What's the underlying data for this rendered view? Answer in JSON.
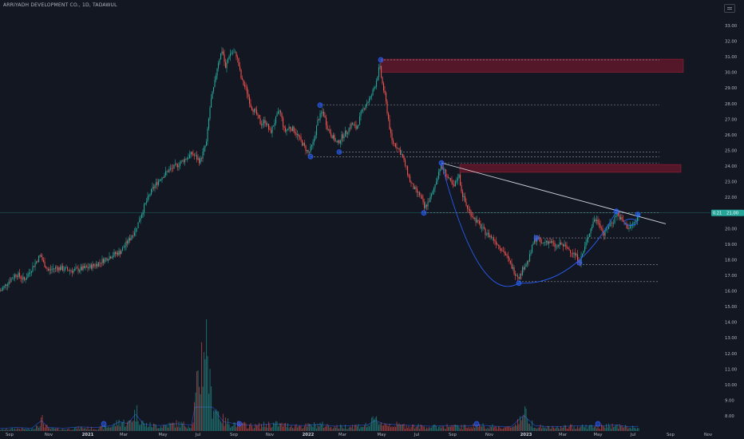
{
  "title": "ARRIYADH DEVELOPMENT CO., 1D, TADAWUL",
  "chart_data": {
    "type": "candlestick",
    "y_ticks": [
      "33.00",
      "32.00",
      "31.00",
      "30.00",
      "29.00",
      "28.00",
      "27.00",
      "26.00",
      "25.00",
      "24.00",
      "23.00",
      "22.00",
      "21.00",
      "20.00",
      "19.00",
      "18.00",
      "17.00",
      "16.00",
      "15.00",
      "14.00",
      "13.00",
      "12.00",
      "11.00",
      "10.00",
      "9.00",
      "8.00"
    ],
    "x_ticks": [
      {
        "label": "Sep",
        "x": 12
      },
      {
        "label": "Nov",
        "x": 61
      },
      {
        "label": "2021",
        "x": 110,
        "bold": true
      },
      {
        "label": "Mar",
        "x": 155
      },
      {
        "label": "May",
        "x": 204
      },
      {
        "label": "Jul",
        "x": 248
      },
      {
        "label": "Sep",
        "x": 293
      },
      {
        "label": "Nov",
        "x": 338
      },
      {
        "label": "2022",
        "x": 386,
        "bold": true
      },
      {
        "label": "Mar",
        "x": 429
      },
      {
        "label": "May",
        "x": 478
      },
      {
        "label": "Jul",
        "x": 522
      },
      {
        "label": "Sep",
        "x": 567
      },
      {
        "label": "Nov",
        "x": 613
      },
      {
        "label": "2023",
        "x": 659,
        "bold": true
      },
      {
        "label": "Mar",
        "x": 705
      },
      {
        "label": "May",
        "x": 749
      },
      {
        "label": "Jul",
        "x": 793
      },
      {
        "label": "Sep",
        "x": 840
      },
      {
        "label": "Nov",
        "x": 887
      }
    ],
    "last_price": "21.00",
    "last_price_labels": [
      "0.21",
      "21.00"
    ],
    "price_path": [
      [
        0,
        16.0
      ],
      [
        10,
        16.6
      ],
      [
        20,
        17.1
      ],
      [
        30,
        16.7
      ],
      [
        40,
        17.5
      ],
      [
        50,
        18.3
      ],
      [
        54,
        17.8
      ],
      [
        60,
        17.3
      ],
      [
        70,
        17.5
      ],
      [
        80,
        17.4
      ],
      [
        90,
        17.3
      ],
      [
        100,
        17.4
      ],
      [
        110,
        17.5
      ],
      [
        120,
        17.7
      ],
      [
        130,
        18.0
      ],
      [
        140,
        18.3
      ],
      [
        150,
        18.5
      ],
      [
        160,
        19.2
      ],
      [
        170,
        20.0
      ],
      [
        180,
        21.4
      ],
      [
        190,
        22.5
      ],
      [
        200,
        23.2
      ],
      [
        210,
        23.7
      ],
      [
        220,
        24.0
      ],
      [
        230,
        24.4
      ],
      [
        240,
        24.8
      ],
      [
        250,
        24.3
      ],
      [
        258,
        25.5
      ],
      [
        263,
        28.0
      ],
      [
        268,
        29.2
      ],
      [
        272,
        30.5
      ],
      [
        278,
        31.5
      ],
      [
        282,
        30.2
      ],
      [
        286,
        31.1
      ],
      [
        290,
        31.3
      ],
      [
        296,
        31.1
      ],
      [
        302,
        29.5
      ],
      [
        308,
        28.9
      ],
      [
        314,
        27.8
      ],
      [
        320,
        27.4
      ],
      [
        326,
        26.7
      ],
      [
        332,
        26.9
      ],
      [
        338,
        26.1
      ],
      [
        344,
        26.9
      ],
      [
        350,
        27.6
      ],
      [
        356,
        26.2
      ],
      [
        362,
        26.5
      ],
      [
        368,
        26.3
      ],
      [
        374,
        25.8
      ],
      [
        380,
        25.3
      ],
      [
        386,
        24.8
      ],
      [
        392,
        25.5
      ],
      [
        398,
        27.0
      ],
      [
        404,
        27.5
      ],
      [
        410,
        26.4
      ],
      [
        416,
        25.9
      ],
      [
        422,
        25.4
      ],
      [
        428,
        25.9
      ],
      [
        434,
        26.2
      ],
      [
        440,
        26.7
      ],
      [
        446,
        26.4
      ],
      [
        452,
        27.4
      ],
      [
        458,
        28.0
      ],
      [
        464,
        28.4
      ],
      [
        470,
        29.3
      ],
      [
        475,
        30.4
      ],
      [
        478,
        29.4
      ],
      [
        482,
        28.4
      ],
      [
        486,
        27.0
      ],
      [
        490,
        25.6
      ],
      [
        496,
        25.3
      ],
      [
        502,
        24.8
      ],
      [
        508,
        23.9
      ],
      [
        514,
        22.9
      ],
      [
        520,
        22.4
      ],
      [
        526,
        22.1
      ],
      [
        531,
        21.3
      ],
      [
        536,
        21.7
      ],
      [
        541,
        22.2
      ],
      [
        546,
        23.1
      ],
      [
        551,
        24.0
      ],
      [
        556,
        23.7
      ],
      [
        562,
        23.1
      ],
      [
        568,
        22.6
      ],
      [
        574,
        23.5
      ],
      [
        578,
        22.3
      ],
      [
        584,
        21.4
      ],
      [
        590,
        20.9
      ],
      [
        596,
        20.5
      ],
      [
        602,
        20.1
      ],
      [
        608,
        19.7
      ],
      [
        614,
        19.5
      ],
      [
        620,
        19.2
      ],
      [
        626,
        18.8
      ],
      [
        632,
        18.4
      ],
      [
        638,
        17.8
      ],
      [
        644,
        17.2
      ],
      [
        650,
        16.9
      ],
      [
        656,
        17.6
      ],
      [
        662,
        18.0
      ],
      [
        668,
        19.2
      ],
      [
        672,
        19.4
      ],
      [
        678,
        19.0
      ],
      [
        684,
        19.2
      ],
      [
        690,
        19.1
      ],
      [
        696,
        18.8
      ],
      [
        702,
        19.0
      ],
      [
        708,
        18.8
      ],
      [
        714,
        18.6
      ],
      [
        720,
        18.3
      ],
      [
        726,
        17.9
      ],
      [
        732,
        18.8
      ],
      [
        738,
        19.8
      ],
      [
        744,
        20.6
      ],
      [
        750,
        20.4
      ],
      [
        756,
        19.6
      ],
      [
        762,
        20.2
      ],
      [
        768,
        20.5
      ],
      [
        772,
        21.0
      ],
      [
        777,
        20.6
      ],
      [
        782,
        20.3
      ],
      [
        787,
        20.0
      ],
      [
        792,
        20.3
      ],
      [
        796,
        20.4
      ],
      [
        800,
        21.0
      ]
    ],
    "volume_path": [
      [
        0,
        1.5
      ],
      [
        20,
        3
      ],
      [
        40,
        2
      ],
      [
        52,
        14
      ],
      [
        60,
        3
      ],
      [
        80,
        2
      ],
      [
        100,
        4
      ],
      [
        120,
        3
      ],
      [
        140,
        6
      ],
      [
        150,
        12
      ],
      [
        160,
        9
      ],
      [
        170,
        24
      ],
      [
        180,
        8
      ],
      [
        200,
        6
      ],
      [
        220,
        9
      ],
      [
        240,
        7
      ],
      [
        258,
        130
      ],
      [
        263,
        42
      ],
      [
        270,
        28
      ],
      [
        280,
        12
      ],
      [
        300,
        8
      ],
      [
        320,
        6
      ],
      [
        340,
        9
      ],
      [
        360,
        7
      ],
      [
        380,
        6
      ],
      [
        400,
        8
      ],
      [
        420,
        5
      ],
      [
        440,
        6
      ],
      [
        460,
        7
      ],
      [
        470,
        14
      ],
      [
        480,
        9
      ],
      [
        500,
        7
      ],
      [
        520,
        6
      ],
      [
        540,
        5
      ],
      [
        560,
        6
      ],
      [
        580,
        5
      ],
      [
        600,
        7
      ],
      [
        620,
        5
      ],
      [
        640,
        4
      ],
      [
        656,
        22
      ],
      [
        670,
        6
      ],
      [
        690,
        4
      ],
      [
        710,
        5
      ],
      [
        730,
        6
      ],
      [
        750,
        5
      ],
      [
        770,
        7
      ],
      [
        790,
        4
      ],
      [
        800,
        5
      ]
    ],
    "boxes": [
      {
        "x1": 477,
        "x2": 856,
        "p1": 30.0,
        "p2": 30.85
      },
      {
        "x1": 576,
        "x2": 853,
        "p1": 23.6,
        "p2": 24.1
      }
    ],
    "hlines": [
      {
        "x1": 477,
        "x2": 826,
        "p": 30.8
      },
      {
        "x1": 401,
        "x2": 826,
        "p": 27.9
      },
      {
        "x1": 425,
        "x2": 826,
        "p": 24.9
      },
      {
        "x1": 389,
        "x2": 826,
        "p": 24.6
      },
      {
        "x1": 553,
        "x2": 826,
        "p": 24.2
      },
      {
        "x1": 531,
        "x2": 826,
        "p": 21.0
      },
      {
        "x1": 672,
        "x2": 826,
        "p": 19.4
      },
      {
        "x1": 726,
        "x2": 826,
        "p": 17.7
      },
      {
        "x1": 650,
        "x2": 826,
        "p": 16.6
      }
    ],
    "trendline": {
      "x1": 553,
      "p1": 24.2,
      "x2": 834,
      "p2": 20.3
    },
    "arcs": [
      {
        "x1": 553,
        "p1": 24.2,
        "cx": 600,
        "cp": 15.0,
        "mx": 650,
        "mp": 16.5
      },
      {
        "x1": 650,
        "p1": 16.5,
        "cx": 720,
        "cp": 16.3,
        "mx": 772,
        "mp": 21.1
      }
    ],
    "small_loop": {
      "cx": 790,
      "p": 20.4
    },
    "markers": [
      [
        401,
        27.9
      ],
      [
        389,
        24.6
      ],
      [
        425,
        24.9
      ],
      [
        477,
        30.8
      ],
      [
        531,
        21.0
      ],
      [
        553,
        24.2
      ],
      [
        650,
        16.5
      ],
      [
        672,
        19.4
      ],
      [
        726,
        17.8
      ],
      [
        772,
        21.1
      ],
      [
        799,
        20.9
      ]
    ],
    "volume_markers": [
      [
        130,
        0
      ],
      [
        300,
        0
      ],
      [
        597,
        0
      ],
      [
        749,
        0
      ]
    ]
  }
}
